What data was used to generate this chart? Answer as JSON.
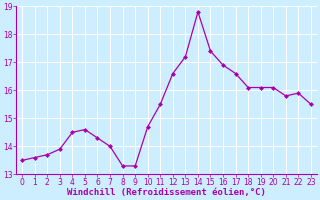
{
  "x": [
    0,
    1,
    2,
    3,
    4,
    5,
    6,
    7,
    8,
    9,
    10,
    11,
    12,
    13,
    14,
    15,
    16,
    17,
    18,
    19,
    20,
    21,
    22,
    23
  ],
  "y": [
    13.5,
    13.6,
    13.7,
    13.9,
    14.5,
    14.6,
    14.3,
    14.0,
    13.3,
    13.3,
    14.7,
    15.5,
    16.6,
    17.2,
    18.8,
    17.4,
    16.9,
    16.6,
    16.1,
    16.1,
    16.1,
    15.8,
    15.9,
    15.5
  ],
  "line_color": "#aa00aa",
  "marker": "D",
  "markersize": 2.0,
  "linewidth": 0.9,
  "xlabel": "Windchill (Refroidissement éolien,°C)",
  "xlabel_fontsize": 6.5,
  "background_color": "#cceeff",
  "grid_color": "#ffffff",
  "tick_color": "#aa00aa",
  "label_color": "#aa00aa",
  "ylim": [
    13,
    19
  ],
  "xlim": [
    -0.5,
    23.5
  ],
  "yticks": [
    13,
    14,
    15,
    16,
    17,
    18,
    19
  ],
  "xticks": [
    0,
    1,
    2,
    3,
    4,
    5,
    6,
    7,
    8,
    9,
    10,
    11,
    12,
    13,
    14,
    15,
    16,
    17,
    18,
    19,
    20,
    21,
    22,
    23
  ],
  "tick_fontsize": 5.5
}
